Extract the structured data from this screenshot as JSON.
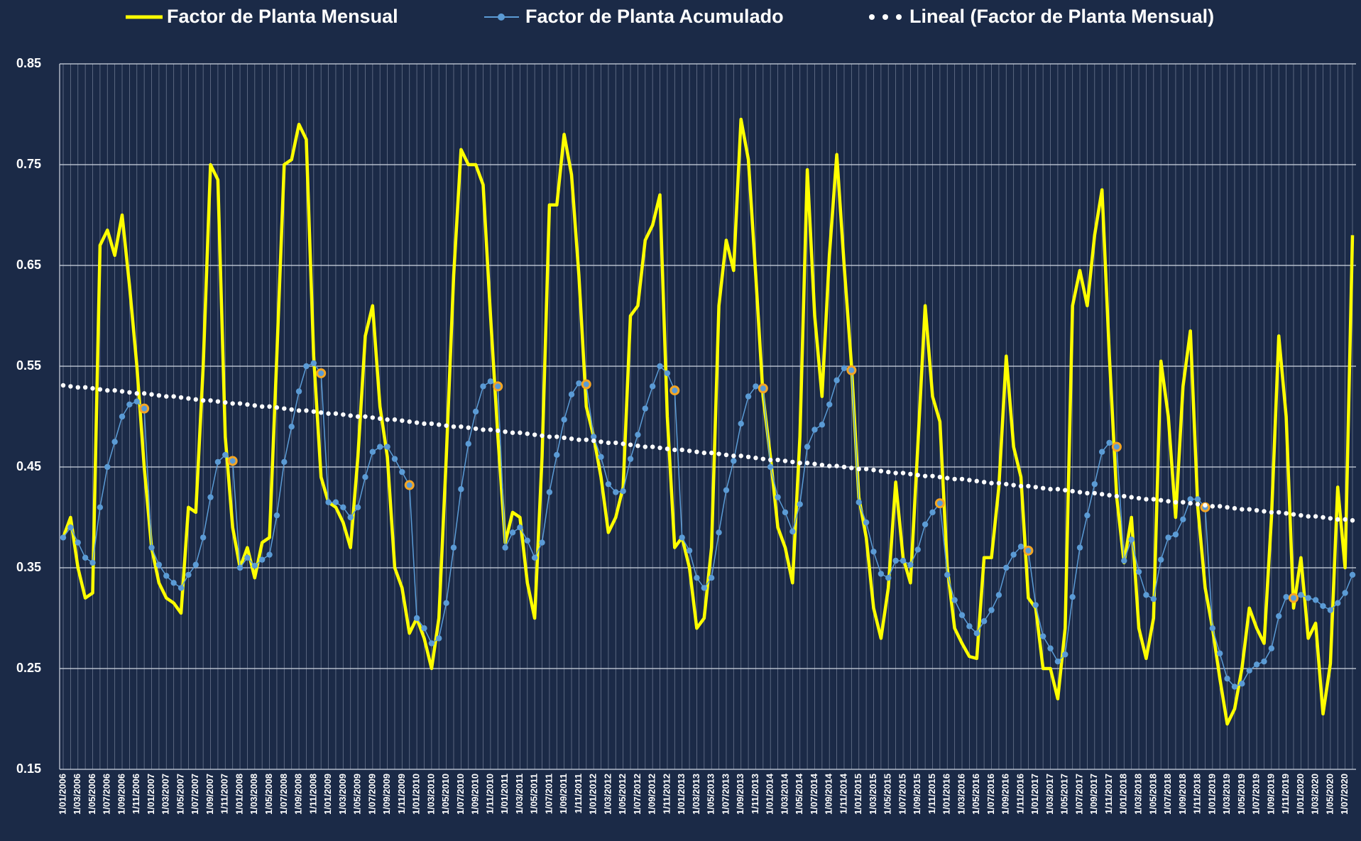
{
  "chart_data": {
    "type": "line",
    "categories": [
      "1/01/2006",
      null,
      "1/03/2006",
      null,
      "1/05/2006",
      null,
      "1/07/2006",
      null,
      "1/09/2006",
      null,
      "1/11/2006",
      null,
      "1/01/2007",
      null,
      "1/03/2007",
      null,
      "1/05/2007",
      null,
      "1/07/2007",
      null,
      "1/09/2007",
      null,
      "1/11/2007",
      null,
      "1/01/2008",
      null,
      "1/03/2008",
      null,
      "1/05/2008",
      null,
      "1/07/2008",
      null,
      "1/09/2008",
      null,
      "1/11/2008",
      null,
      "1/01/2009",
      null,
      "1/03/2009",
      null,
      "1/05/2009",
      null,
      "1/07/2009",
      null,
      "1/09/2009",
      null,
      "1/11/2009",
      null,
      "1/01/2010",
      null,
      "1/03/2010",
      null,
      "1/05/2010",
      null,
      "1/07/2010",
      null,
      "1/09/2010",
      null,
      "1/11/2010",
      null,
      "1/01/2011",
      null,
      "1/03/2011",
      null,
      "1/05/2011",
      null,
      "1/07/2011",
      null,
      "1/09/2011",
      null,
      "1/11/2011",
      null,
      "1/01/2012",
      null,
      "1/03/2012",
      null,
      "1/05/2012",
      null,
      "1/07/2012",
      null,
      "1/09/2012",
      null,
      "1/11/2012",
      null,
      "1/01/2013",
      null,
      "1/03/2013",
      null,
      "1/05/2013",
      null,
      "1/07/2013",
      null,
      "1/09/2013",
      null,
      "1/11/2013",
      null,
      "1/01/2014",
      null,
      "1/03/2014",
      null,
      "1/05/2014",
      null,
      "1/07/2014",
      null,
      "1/09/2014",
      null,
      "1/11/2014",
      null,
      "1/01/2015",
      null,
      "1/03/2015",
      null,
      "1/05/2015",
      null,
      "1/07/2015",
      null,
      "1/09/2015",
      null,
      "1/11/2015",
      null,
      "1/01/2016",
      null,
      "1/03/2016",
      null,
      "1/05/2016",
      null,
      "1/07/2016",
      null,
      "1/09/2016",
      null,
      "1/11/2016",
      null,
      "1/01/2017",
      null,
      "1/03/2017",
      null,
      "1/05/2017",
      null,
      "1/07/2017",
      null,
      "1/09/2017",
      null,
      "1/11/2017",
      null,
      "1/01/2018",
      null,
      "1/03/2018",
      null,
      "1/05/2018",
      null,
      "1/07/2018",
      null,
      "1/09/2018",
      null,
      "1/11/2018",
      null,
      "1/01/2019",
      null,
      "1/03/2019",
      null,
      "1/05/2019",
      null,
      "1/07/2019",
      null,
      "1/09/2019",
      null,
      "1/11/2019",
      null,
      "1/01/2020",
      null,
      "1/03/2020",
      null,
      "1/05/2020",
      null,
      "1/07/2020",
      null
    ],
    "series": [
      {
        "name": "Factor de Planta Mensual",
        "color": "#ffff00",
        "style": "line",
        "values": [
          0.38,
          0.4,
          0.35,
          0.32,
          0.325,
          0.67,
          0.685,
          0.66,
          0.7,
          0.63,
          0.55,
          0.45,
          0.37,
          0.335,
          0.32,
          0.315,
          0.305,
          0.41,
          0.405,
          0.55,
          0.75,
          0.735,
          0.48,
          0.39,
          0.35,
          0.37,
          0.34,
          0.375,
          0.38,
          0.56,
          0.75,
          0.755,
          0.79,
          0.775,
          0.56,
          0.44,
          0.415,
          0.41,
          0.395,
          0.37,
          0.46,
          0.58,
          0.61,
          0.51,
          0.46,
          0.35,
          0.33,
          0.285,
          0.3,
          0.28,
          0.25,
          0.3,
          0.46,
          0.64,
          0.765,
          0.75,
          0.75,
          0.73,
          0.6,
          0.48,
          0.375,
          0.405,
          0.4,
          0.335,
          0.3,
          0.46,
          0.71,
          0.71,
          0.78,
          0.74,
          0.64,
          0.51,
          0.48,
          0.44,
          0.385,
          0.4,
          0.43,
          0.6,
          0.61,
          0.675,
          0.69,
          0.72,
          0.5,
          0.37,
          0.38,
          0.35,
          0.29,
          0.3,
          0.37,
          0.61,
          0.675,
          0.645,
          0.795,
          0.755,
          0.64,
          0.52,
          0.46,
          0.39,
          0.37,
          0.335,
          0.48,
          0.745,
          0.6,
          0.52,
          0.66,
          0.76,
          0.65,
          0.55,
          0.42,
          0.38,
          0.31,
          0.28,
          0.33,
          0.435,
          0.36,
          0.335,
          0.47,
          0.61,
          0.52,
          0.495,
          0.35,
          0.29,
          0.275,
          0.262,
          0.26,
          0.36,
          0.36,
          0.43,
          0.56,
          0.47,
          0.44,
          0.32,
          0.31,
          0.25,
          0.25,
          0.22,
          0.29,
          0.61,
          0.645,
          0.61,
          0.68,
          0.725,
          0.56,
          0.42,
          0.355,
          0.4,
          0.29,
          0.26,
          0.3,
          0.555,
          0.5,
          0.4,
          0.53,
          0.585,
          0.41,
          0.33,
          0.29,
          0.24,
          0.195,
          0.21,
          0.25,
          0.31,
          0.29,
          0.275,
          0.4,
          0.58,
          0.5,
          0.31,
          0.36,
          0.28,
          0.295,
          0.205,
          0.255,
          0.43,
          0.35,
          0.68
        ]
      },
      {
        "name": "Factor de Planta Acumulado",
        "color": "#5b9bd5",
        "style": "line-marker",
        "highlight_color": "#f5a623",
        "values": [
          0.38,
          0.39,
          0.375,
          0.36,
          0.355,
          0.41,
          0.45,
          0.475,
          0.5,
          0.512,
          0.515,
          0.508,
          0.37,
          0.353,
          0.342,
          0.335,
          0.33,
          0.343,
          0.353,
          0.38,
          0.42,
          0.455,
          0.462,
          0.456,
          0.35,
          0.36,
          0.352,
          0.358,
          0.363,
          0.402,
          0.455,
          0.49,
          0.525,
          0.55,
          0.553,
          0.543,
          0.415,
          0.415,
          0.41,
          0.4,
          0.41,
          0.44,
          0.465,
          0.47,
          0.47,
          0.458,
          0.445,
          0.432,
          0.3,
          0.29,
          0.275,
          0.28,
          0.315,
          0.37,
          0.428,
          0.473,
          0.505,
          0.53,
          0.535,
          0.53,
          0.37,
          0.385,
          0.39,
          0.377,
          0.36,
          0.375,
          0.425,
          0.462,
          0.497,
          0.522,
          0.533,
          0.532,
          0.48,
          0.46,
          0.433,
          0.425,
          0.426,
          0.458,
          0.482,
          0.508,
          0.53,
          0.55,
          0.543,
          0.526,
          0.38,
          0.367,
          0.34,
          0.33,
          0.34,
          0.385,
          0.427,
          0.456,
          0.493,
          0.52,
          0.53,
          0.528,
          0.45,
          0.42,
          0.405,
          0.386,
          0.413,
          0.47,
          0.487,
          0.492,
          0.512,
          0.536,
          0.548,
          0.546,
          0.415,
          0.395,
          0.366,
          0.344,
          0.34,
          0.357,
          0.357,
          0.353,
          0.368,
          0.393,
          0.405,
          0.414,
          0.343,
          0.318,
          0.303,
          0.292,
          0.285,
          0.297,
          0.308,
          0.323,
          0.35,
          0.363,
          0.371,
          0.367,
          0.313,
          0.282,
          0.27,
          0.257,
          0.264,
          0.321,
          0.37,
          0.402,
          0.433,
          0.465,
          0.474,
          0.47,
          0.357,
          0.378,
          0.346,
          0.323,
          0.319,
          0.358,
          0.38,
          0.383,
          0.398,
          0.418,
          0.418,
          0.41,
          0.29,
          0.265,
          0.24,
          0.232,
          0.235,
          0.248,
          0.254,
          0.257,
          0.27,
          0.302,
          0.321,
          0.32,
          0.323,
          0.32,
          0.318,
          0.312,
          0.308,
          0.315,
          0.325,
          0.343
        ]
      },
      {
        "name": "Lineal (Factor de Planta Mensual)",
        "color": "#ffffff",
        "style": "dots",
        "values": [
          0.531,
          0.53,
          0.529,
          0.529,
          0.528,
          0.527,
          0.526,
          0.526,
          0.525,
          0.524,
          0.523,
          0.523,
          0.522,
          0.521,
          0.52,
          0.52,
          0.519,
          0.518,
          0.517,
          0.516,
          0.516,
          0.515,
          0.514,
          0.513,
          0.513,
          0.512,
          0.511,
          0.51,
          0.51,
          0.509,
          0.508,
          0.507,
          0.506,
          0.506,
          0.505,
          0.504,
          0.503,
          0.503,
          0.502,
          0.501,
          0.5,
          0.5,
          0.499,
          0.498,
          0.497,
          0.497,
          0.496,
          0.495,
          0.494,
          0.493,
          0.493,
          0.492,
          0.491,
          0.49,
          0.49,
          0.489,
          0.488,
          0.487,
          0.487,
          0.486,
          0.485,
          0.484,
          0.484,
          0.483,
          0.482,
          0.481,
          0.48,
          0.48,
          0.479,
          0.478,
          0.477,
          0.477,
          0.476,
          0.475,
          0.474,
          0.474,
          0.473,
          0.472,
          0.471,
          0.47,
          0.47,
          0.469,
          0.468,
          0.467,
          0.467,
          0.466,
          0.465,
          0.464,
          0.464,
          0.463,
          0.462,
          0.461,
          0.461,
          0.46,
          0.459,
          0.458,
          0.457,
          0.457,
          0.456,
          0.455,
          0.454,
          0.454,
          0.453,
          0.452,
          0.451,
          0.451,
          0.45,
          0.449,
          0.448,
          0.448,
          0.447,
          0.446,
          0.445,
          0.444,
          0.444,
          0.443,
          0.442,
          0.441,
          0.441,
          0.44,
          0.439,
          0.438,
          0.438,
          0.437,
          0.436,
          0.435,
          0.434,
          0.434,
          0.433,
          0.432,
          0.431,
          0.431,
          0.43,
          0.429,
          0.428,
          0.428,
          0.427,
          0.426,
          0.425,
          0.424,
          0.424,
          0.423,
          0.422,
          0.421,
          0.421,
          0.42,
          0.419,
          0.418,
          0.418,
          0.417,
          0.416,
          0.415,
          0.415,
          0.414,
          0.413,
          0.412,
          0.411,
          0.411,
          0.41,
          0.409,
          0.408,
          0.408,
          0.407,
          0.406,
          0.405,
          0.405,
          0.404,
          0.403,
          0.402,
          0.401,
          0.401,
          0.4,
          0.399,
          0.398,
          0.398,
          0.397
        ]
      }
    ],
    "ylim": [
      0.15,
      0.85
    ],
    "yticks": [
      0.15,
      0.25,
      0.35,
      0.45,
      0.55,
      0.65,
      0.75,
      0.85
    ],
    "grid": true,
    "legend": "top"
  }
}
